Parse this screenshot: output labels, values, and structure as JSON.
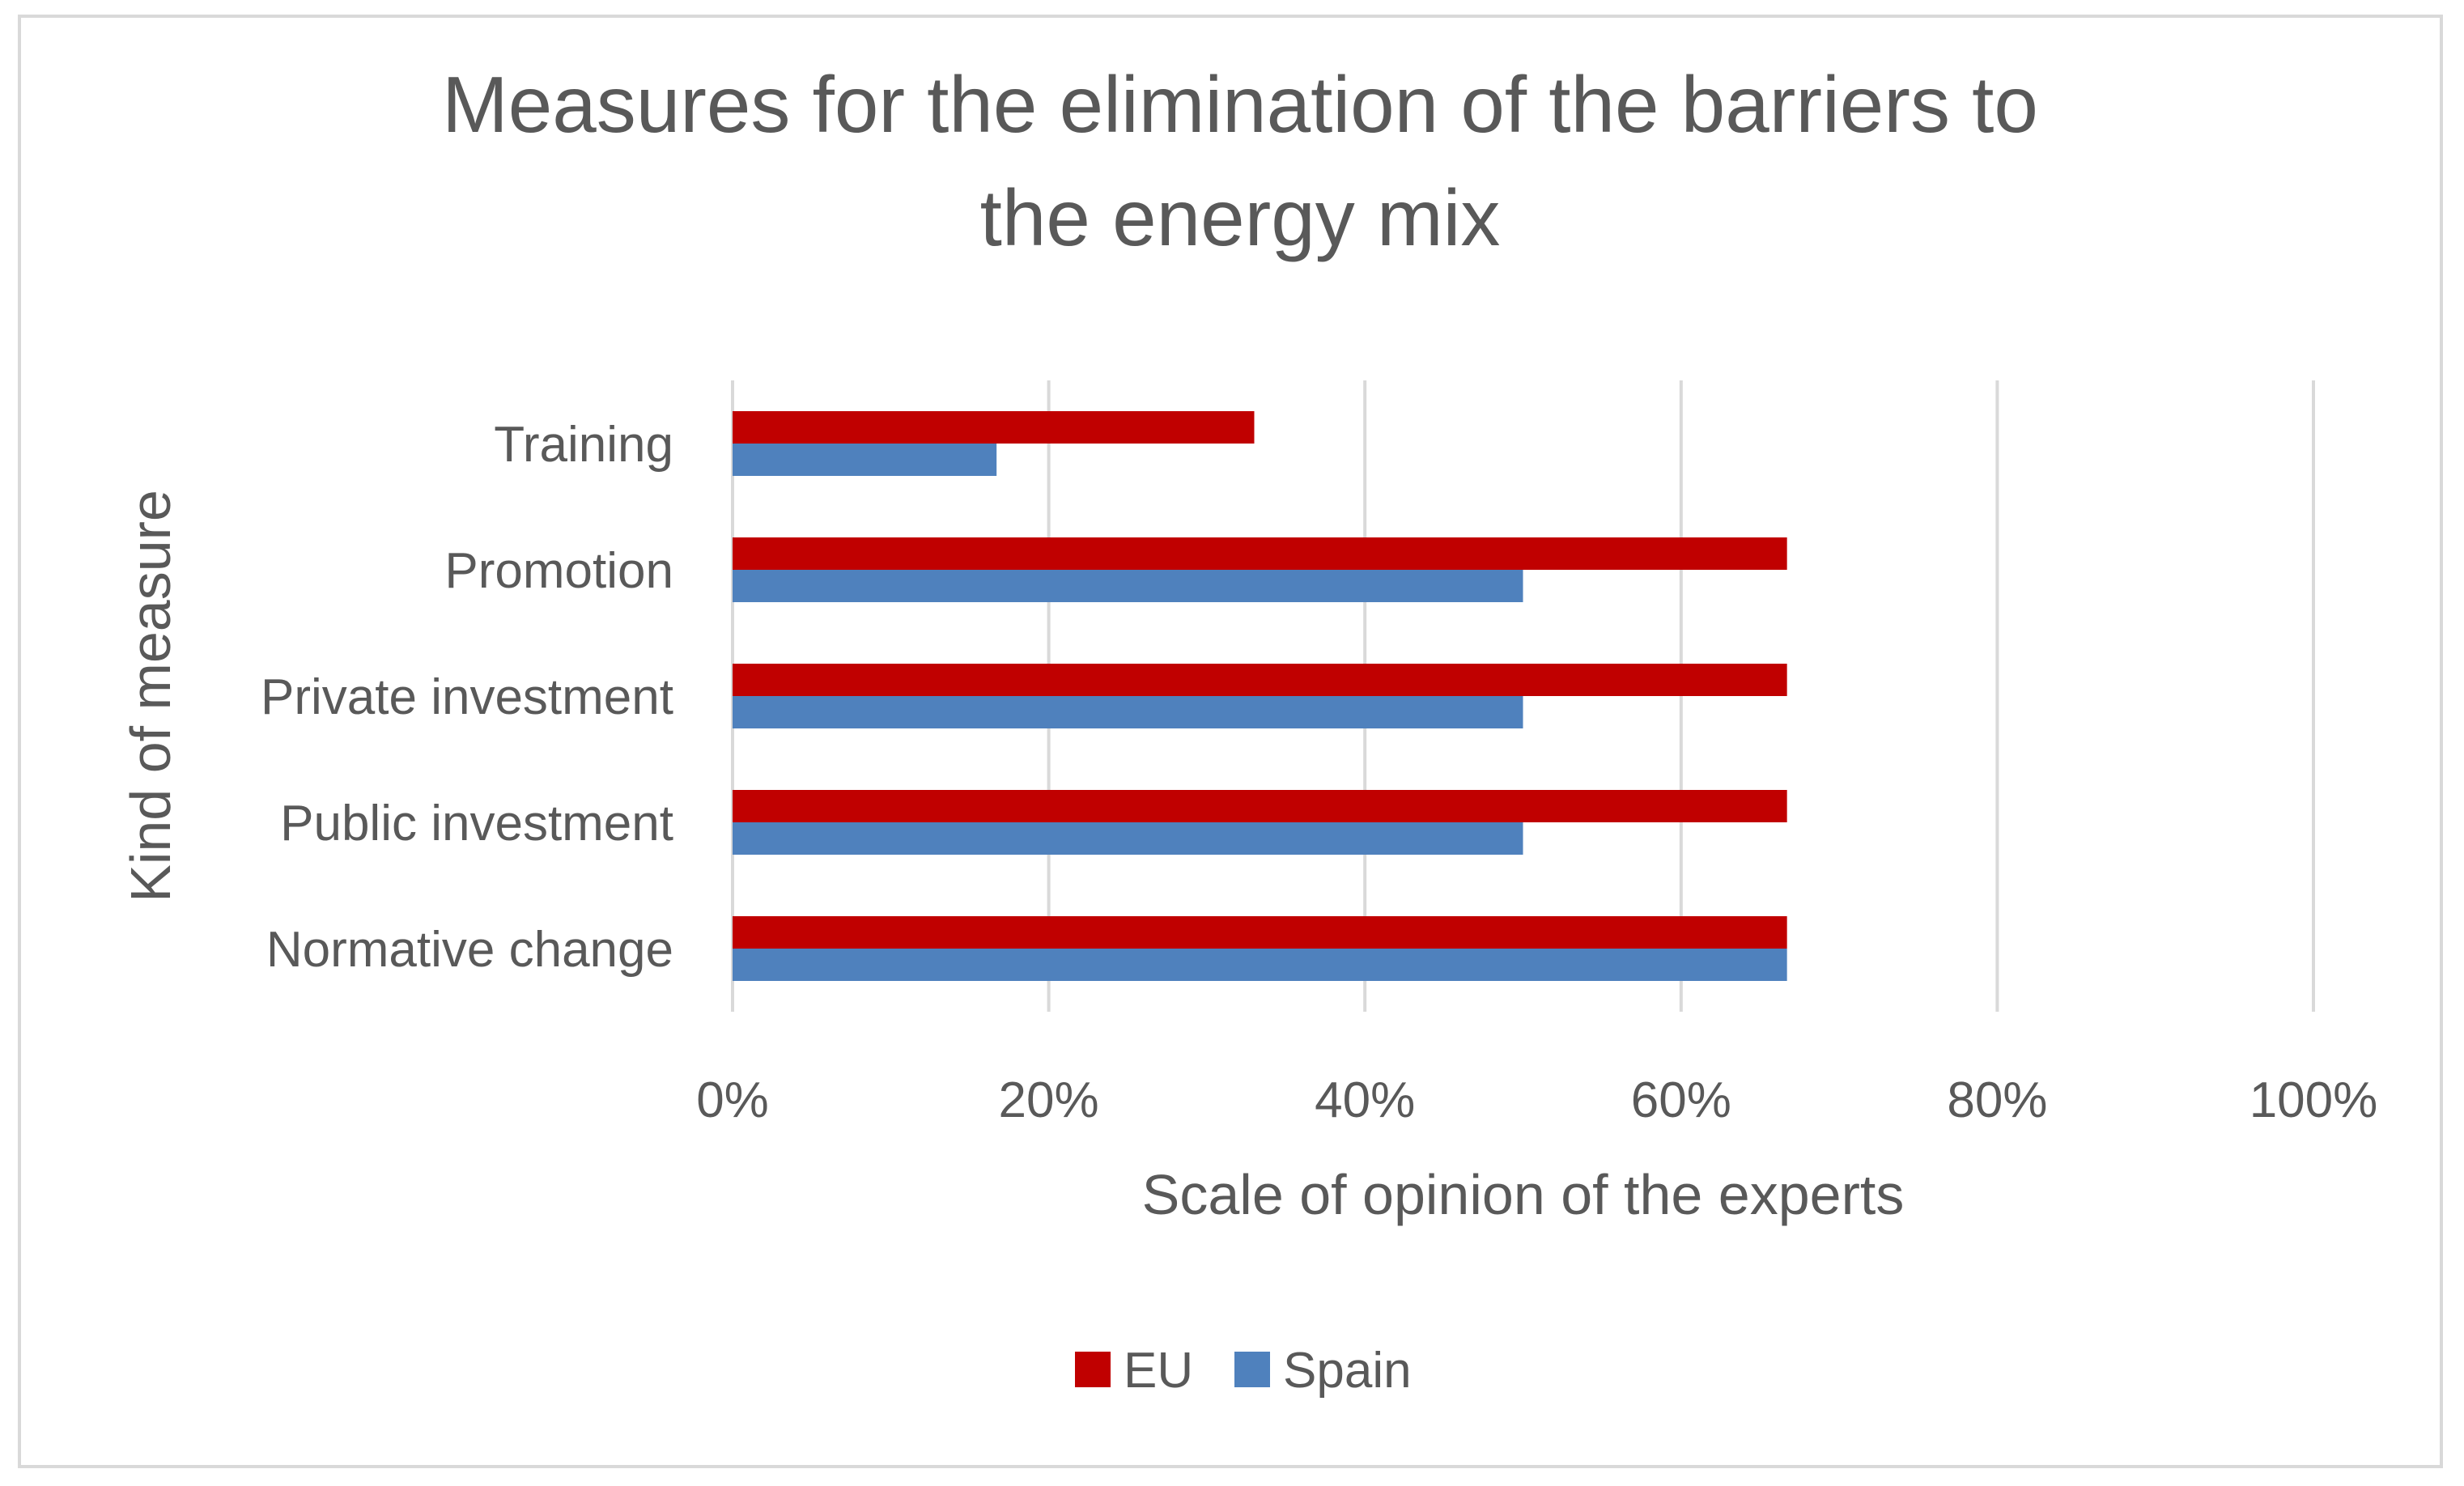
{
  "chart_data": {
    "type": "bar",
    "orientation": "horizontal",
    "title_lines": [
      "Measures for the elimination of the barriers to",
      "the energy mix"
    ],
    "xlabel": "Scale of opinion of the experts",
    "ylabel": "Kind of measure",
    "categories": [
      "Training",
      "Promotion",
      "Private investment",
      "Public investment",
      "Normative change"
    ],
    "series": [
      {
        "name": "EU",
        "color": "#c00000",
        "values": [
          0.33,
          0.667,
          0.667,
          0.667,
          0.667
        ]
      },
      {
        "name": "Spain",
        "color": "#4f81bd",
        "values": [
          0.167,
          0.5,
          0.5,
          0.5,
          0.667
        ]
      }
    ],
    "xlim": [
      0,
      1
    ],
    "xticks": [
      0,
      0.2,
      0.4,
      0.6,
      0.8,
      1.0
    ],
    "xtick_labels": [
      "0%",
      "20%",
      "40%",
      "60%",
      "80%",
      "100%"
    ],
    "grid": true,
    "legend_position": "bottom",
    "gridline_color": "#d9d9d9",
    "text_color": "#595959"
  }
}
